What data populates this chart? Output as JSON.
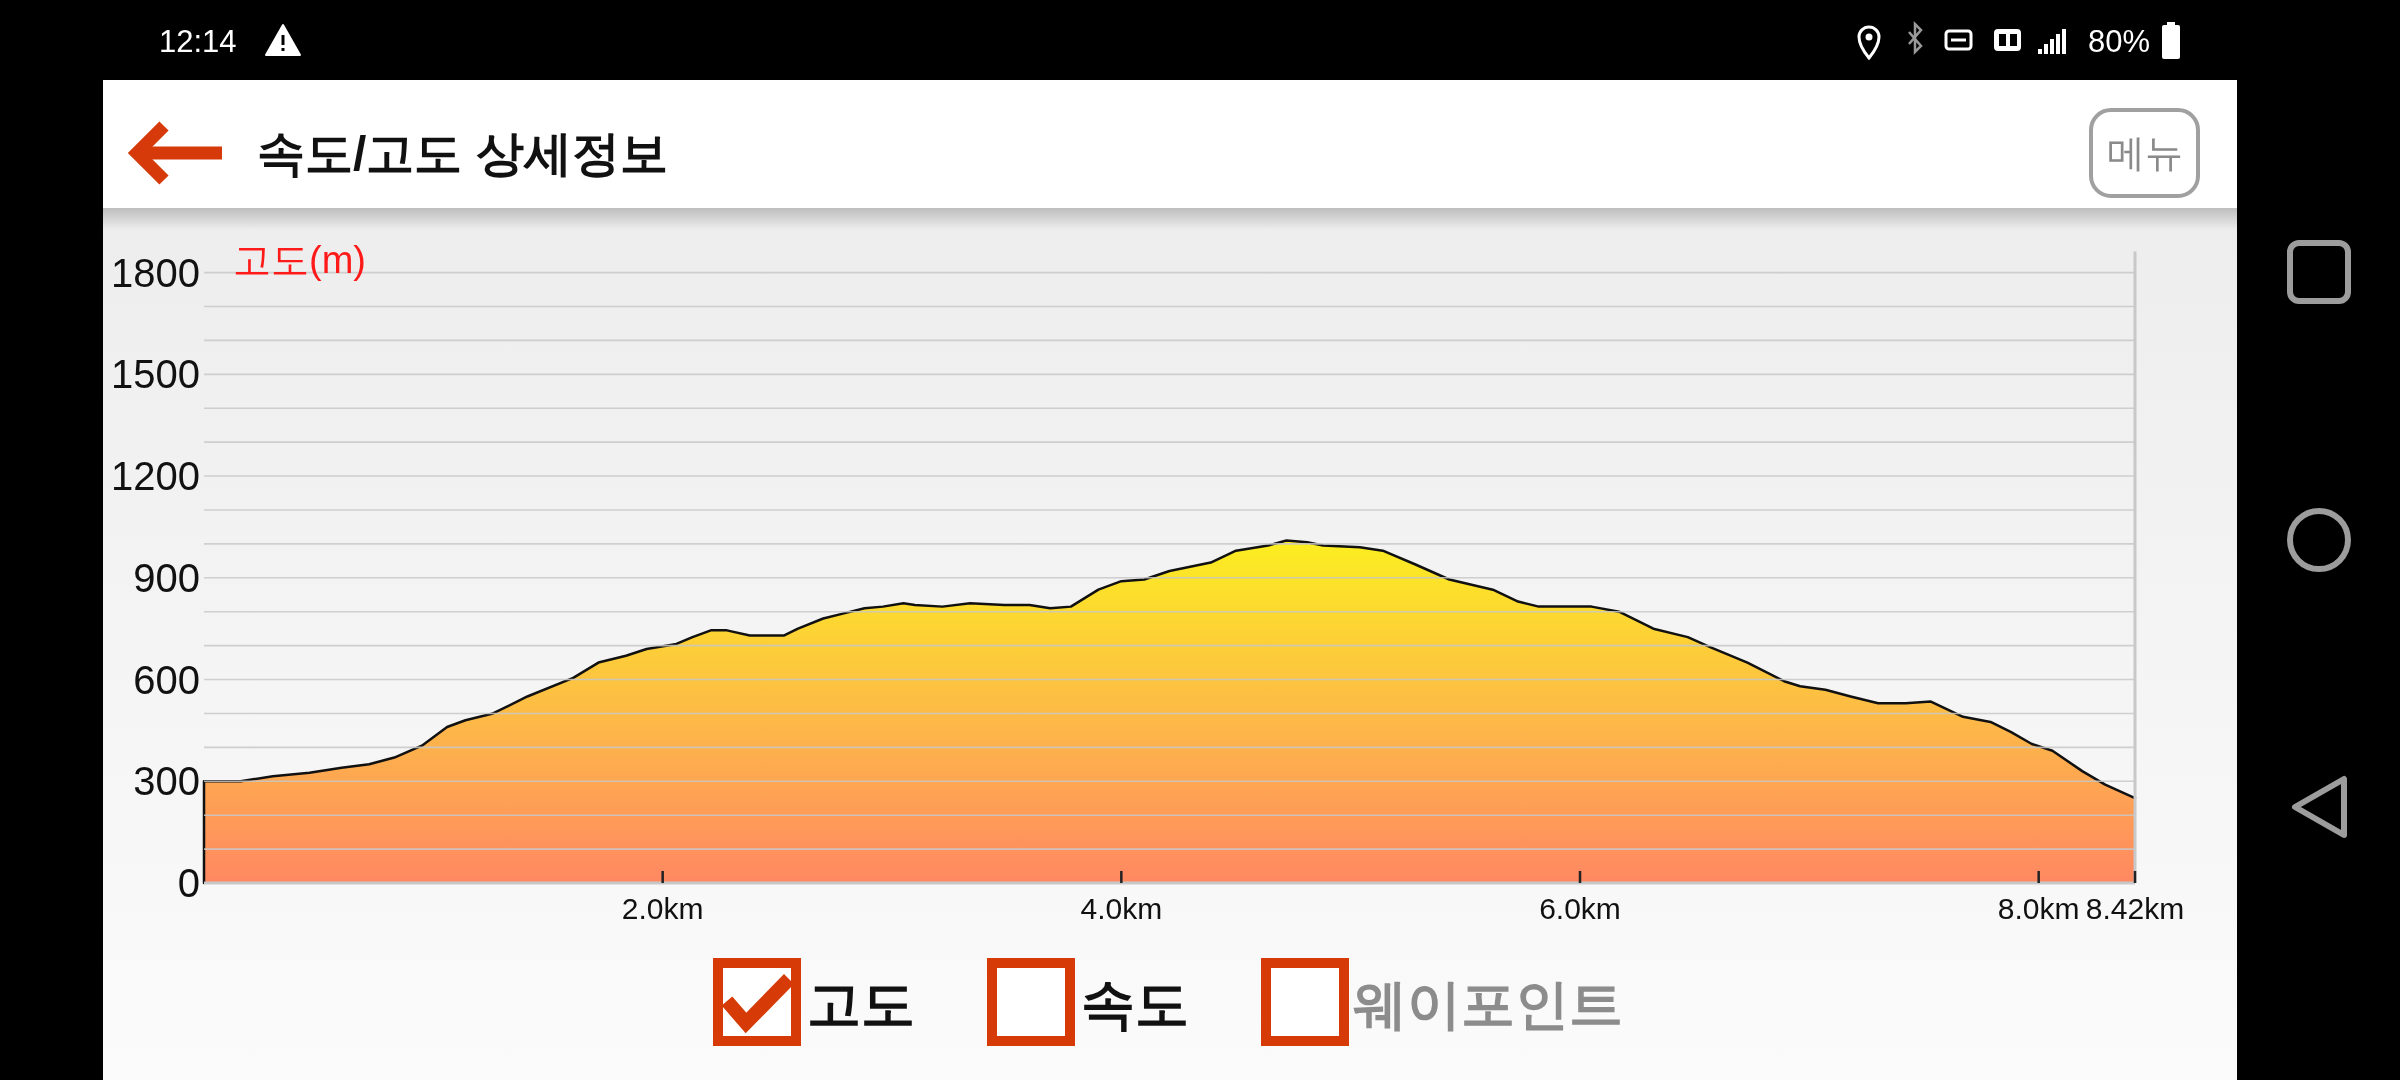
{
  "chart_data": {
    "type": "area",
    "title": "속도/고도 상세정보",
    "ylabel": "고도(m)",
    "x": [
      0,
      0.16,
      0.3,
      0.46,
      0.6,
      0.72,
      0.83,
      0.95,
      1.06,
      1.14,
      1.26,
      1.41,
      1.61,
      1.72,
      1.84,
      1.93,
      2.06,
      2.13,
      2.21,
      2.28,
      2.38,
      2.53,
      2.59,
      2.7,
      2.79,
      2.88,
      2.96,
      3.05,
      3.1,
      3.22,
      3.34,
      3.49,
      3.6,
      3.69,
      3.78,
      3.9,
      4.0,
      4.1,
      4.21,
      4.39,
      4.5,
      4.64,
      4.72,
      4.81,
      4.88,
      5.04,
      5.14,
      5.28,
      5.43,
      5.62,
      5.73,
      5.82,
      6.05,
      6.17,
      6.32,
      6.47,
      6.57,
      6.73,
      6.89,
      6.96,
      7.07,
      7.18,
      7.3,
      7.42,
      7.53,
      7.67,
      7.79,
      7.88,
      7.97,
      8.06,
      8.19,
      8.29,
      8.42
    ],
    "series": [
      {
        "color": "#fdbb46",
        "values": [
          300,
          300,
          315,
          325,
          340,
          350,
          370,
          405,
          460,
          480,
          500,
          550,
          605,
          650,
          670,
          690,
          705,
          725,
          745,
          745,
          730,
          730,
          750,
          780,
          795,
          810,
          815,
          825,
          820,
          815,
          825,
          820,
          820,
          810,
          815,
          865,
          890,
          895,
          920,
          945,
          980,
          995,
          1010,
          1005,
          995,
          990,
          980,
          940,
          895,
          865,
          830,
          815,
          815,
          800,
          750,
          725,
          695,
          650,
          595,
          580,
          570,
          550,
          530,
          530,
          535,
          490,
          475,
          445,
          410,
          390,
          330,
          290,
          250
        ]
      }
    ],
    "xlim": [
      0,
      8.42
    ],
    "xticks": [
      {
        "value": 2,
        "label": "2.0km"
      },
      {
        "value": 4,
        "label": "4.0km"
      },
      {
        "value": 6,
        "label": "6.0km"
      },
      {
        "value": 8,
        "label": "8.0km"
      },
      {
        "value": 8.42,
        "label": "8.42km"
      }
    ],
    "ylim": [
      0,
      1800
    ],
    "yticks": [
      0,
      {
        "value": 100,
        "label": null
      },
      {
        "value": 200,
        "label": null
      },
      300,
      {
        "value": 400,
        "label": null
      },
      {
        "value": 500,
        "label": null
      },
      600,
      {
        "value": 700,
        "label": null
      },
      {
        "value": 800,
        "label": null
      },
      900,
      {
        "value": 1000,
        "label": null
      },
      {
        "value": 1100,
        "label": null
      },
      1200,
      {
        "value": 1300,
        "label": null
      },
      {
        "value": 1400,
        "label": null
      },
      1500,
      {
        "value": 1600,
        "label": null
      },
      {
        "value": 1700,
        "label": null
      },
      1800
    ],
    "grid": "y",
    "annotations": [
      "12:14",
      "80%",
      "메뉴",
      "고도",
      "속도",
      "웨이포인트"
    ]
  }
}
